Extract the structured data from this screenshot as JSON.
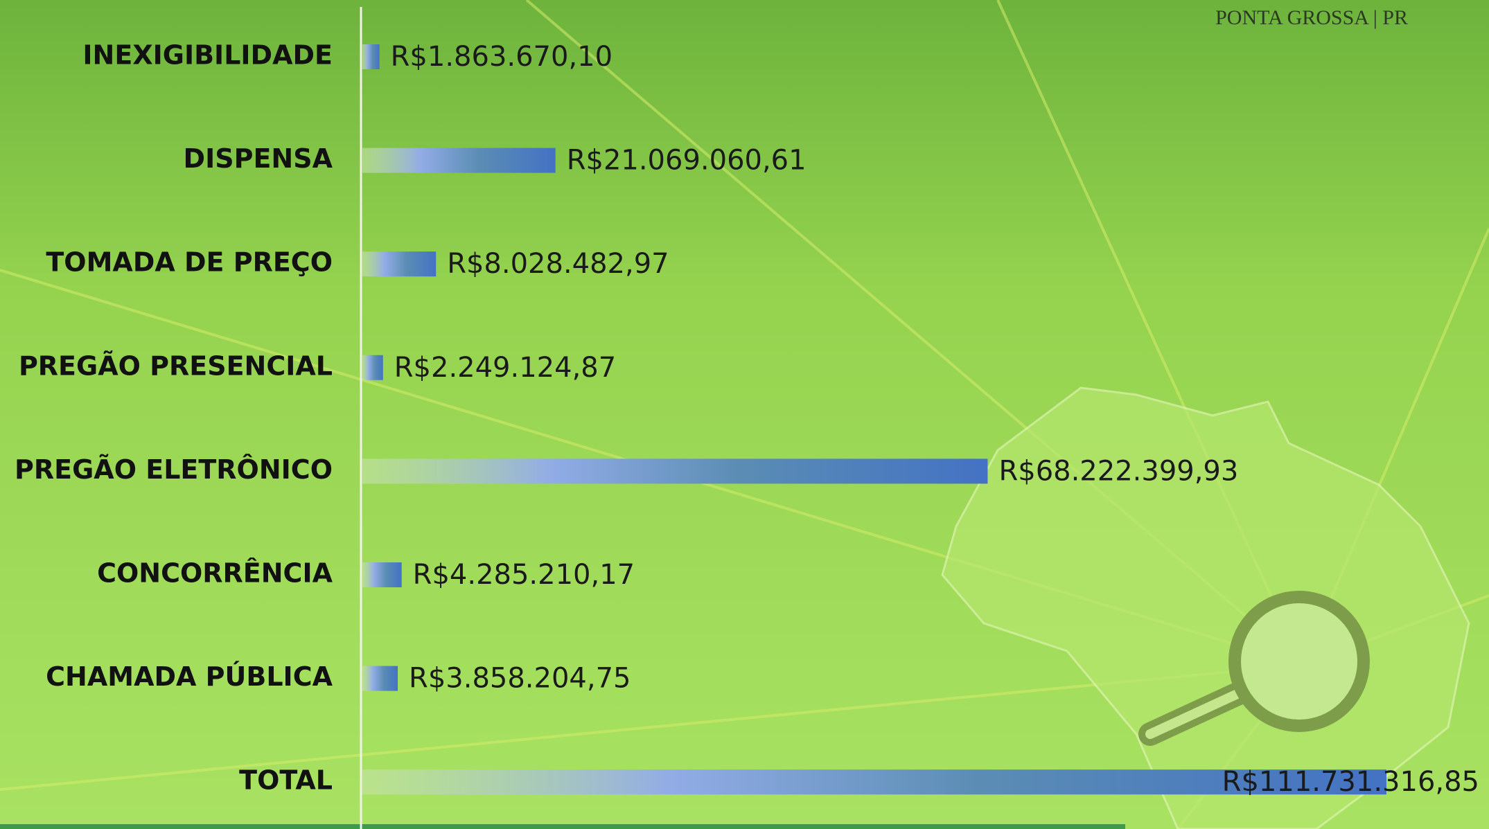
{
  "chart_data": {
    "type": "hbar",
    "annotation": "PONTA GROSSA | PR",
    "color": "#4472c4",
    "categories": [
      "INEXIGIBILIDADE",
      "DISPENSA",
      "TOMADA DE PREÇO",
      "PREGÃO PRESENCIAL",
      "PREGÃO ELETRÔNICO",
      "CONCORRÊNCIA",
      "CHAMADA PÚBLICA",
      "TOTAL"
    ],
    "values": [
      1863670.1,
      21069060.61,
      8028482.97,
      2249124.87,
      68222399.93,
      4285210.17,
      3858204.75,
      111731316.85
    ],
    "value_labels": [
      "R$1.863.670,10",
      "R$21.069.060,61",
      "R$8.028.482,97",
      "R$2.249.124,87",
      "R$68.222.399,93",
      "R$4.285.210,17",
      "R$3.858.204,75",
      "R$111.731.316,85"
    ]
  }
}
